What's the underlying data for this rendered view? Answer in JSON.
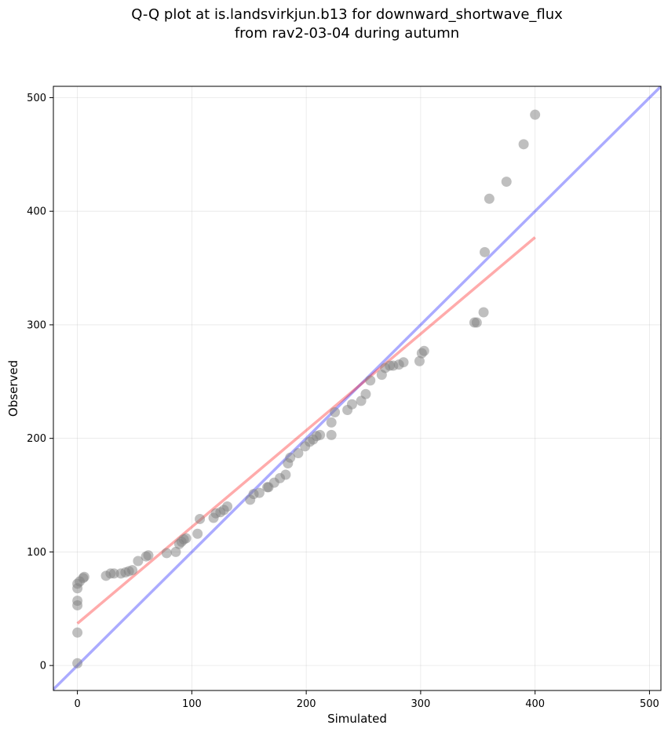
{
  "chart_data": {
    "type": "scatter",
    "title_line1": "Q-Q plot at is.landsvirkjun.b13 for downward_shortwave_flux",
    "title_line2": "from rav2-03-04 during autumn",
    "xlabel": "Simulated",
    "ylabel": "Observed",
    "xlim": [
      -21,
      510
    ],
    "ylim": [
      -22,
      510
    ],
    "xticks": [
      0,
      100,
      200,
      300,
      400,
      500
    ],
    "yticks": [
      0,
      100,
      200,
      300,
      400,
      500
    ],
    "grid": true,
    "colors": {
      "points": "#808080",
      "identity_line": "#0000ff",
      "fit_line": "#ff0000"
    },
    "points": {
      "x": [
        0,
        0,
        0,
        0,
        0,
        0,
        2,
        5,
        6,
        25,
        29,
        32,
        38,
        42,
        45,
        48,
        53,
        60,
        62,
        78,
        86,
        89,
        91,
        93,
        95,
        107,
        105,
        119,
        121,
        125,
        128,
        131,
        151,
        154,
        159,
        166,
        167,
        172,
        177,
        182,
        184,
        186,
        193,
        199,
        203,
        206,
        209,
        212,
        222,
        222,
        225,
        236,
        240,
        248,
        252,
        256,
        266,
        269,
        273,
        276,
        281,
        285,
        299,
        301,
        303,
        347,
        349,
        355,
        356,
        360,
        375,
        390,
        400
      ],
      "y": [
        2,
        29,
        53,
        57,
        68,
        72,
        74,
        77,
        78,
        79,
        81,
        81,
        81,
        82,
        83,
        84,
        92,
        96,
        97,
        99,
        100,
        107,
        109,
        111,
        112,
        129,
        116,
        130,
        134,
        135,
        137,
        140,
        146,
        151,
        152,
        157,
        157,
        161,
        165,
        168,
        178,
        183,
        187,
        193,
        197,
        199,
        202,
        203,
        203,
        214,
        223,
        225,
        230,
        233,
        239,
        251,
        256,
        262,
        264,
        264,
        265,
        267,
        268,
        275,
        277,
        302,
        302,
        311,
        364,
        411,
        426,
        459,
        485
      ]
    },
    "identity_line": {
      "x": [
        -21,
        510
      ],
      "y": [
        -21,
        510
      ]
    },
    "fit_line": {
      "x": [
        0,
        400
      ],
      "y": [
        37,
        377
      ]
    }
  }
}
